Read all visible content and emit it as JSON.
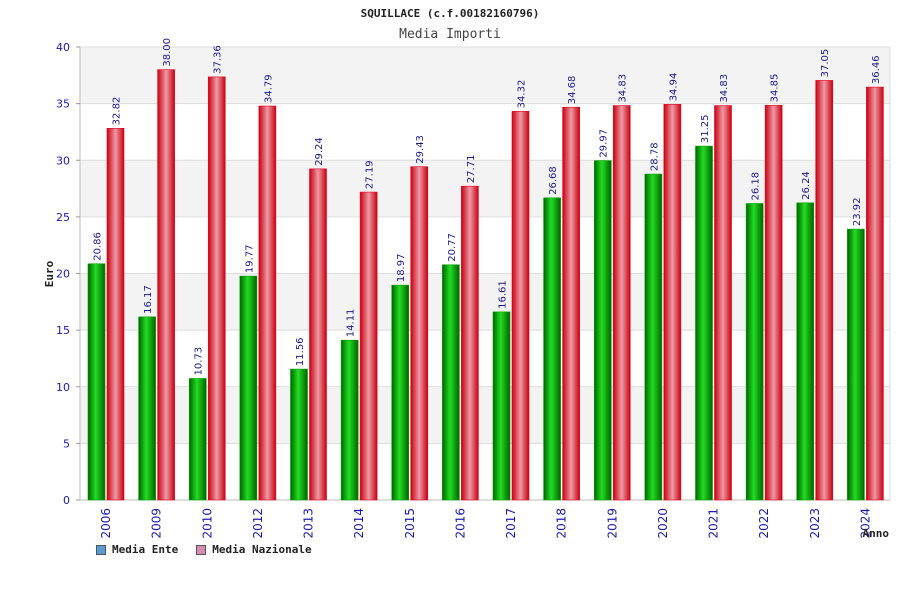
{
  "chart_data": {
    "type": "bar",
    "title": "SQUILLACE (c.f.00182160796)",
    "subtitle": "Media Importi",
    "xlabel": "Anno",
    "ylabel": "Euro",
    "ylim": [
      0,
      40
    ],
    "yticks": [
      0,
      5,
      10,
      15,
      20,
      25,
      30,
      35,
      40
    ],
    "grid": true,
    "legend_position": "bottom-left",
    "categories": [
      "2006",
      "2009",
      "2010",
      "2012",
      "2013",
      "2014",
      "2015",
      "2016",
      "2017",
      "2018",
      "2019",
      "2020",
      "2021",
      "2022",
      "2023",
      "2024"
    ],
    "series": [
      {
        "name": "Media Ente",
        "color": "#00a000",
        "legend_color": "#5b9bd5",
        "values": [
          20.86,
          16.17,
          10.73,
          19.77,
          11.56,
          14.11,
          18.97,
          20.77,
          16.61,
          26.68,
          29.97,
          28.78,
          31.25,
          26.18,
          26.24,
          23.92
        ],
        "labels": [
          "20.86",
          "16.17",
          "10.73",
          "19.77",
          "11.56",
          "14.11",
          "18.97",
          "20.77",
          "16.61",
          "26.68",
          "29.97",
          "28.78",
          "31.25",
          "26.18",
          "26.24",
          "23.92"
        ]
      },
      {
        "name": "Media Nazionale",
        "color": "#e8001c",
        "legend_color": "#d98cb3",
        "values": [
          32.82,
          38.0,
          37.36,
          34.79,
          29.24,
          27.19,
          29.43,
          27.71,
          34.32,
          34.68,
          34.83,
          34.94,
          34.83,
          34.85,
          37.05,
          36.46
        ],
        "labels": [
          "32.82",
          "38.00",
          "37.36",
          "34.79",
          "29.24",
          "27.19",
          "29.43",
          "27.71",
          "34.32",
          "34.68",
          "34.83",
          "34.94",
          "34.83",
          "34.85",
          "37.05",
          "36.46"
        ]
      }
    ]
  }
}
